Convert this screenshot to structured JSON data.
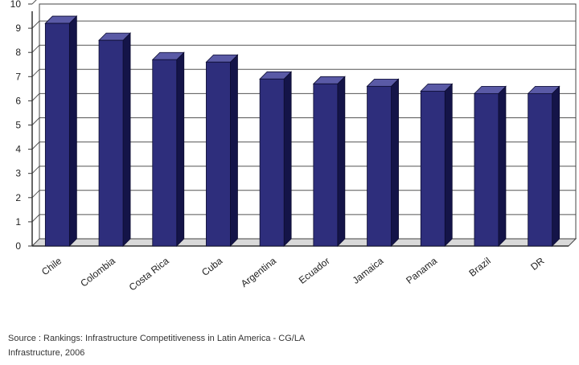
{
  "chart_data": {
    "type": "bar",
    "title": "",
    "xlabel": "",
    "ylabel": "",
    "categories": [
      "Chile",
      "Colombia",
      "Costa Rica",
      "Cuba",
      "Argentina",
      "Ecuador",
      "Jamaica",
      "Panama",
      "Brazil",
      "DR"
    ],
    "values": [
      9.2,
      8.5,
      7.7,
      7.6,
      6.9,
      6.7,
      6.6,
      6.4,
      6.3,
      6.3
    ],
    "ylim": [
      0,
      10
    ],
    "yticks": [
      "0",
      "1",
      "2",
      "3",
      "4",
      "5",
      "6",
      "7",
      "8",
      "9",
      "10"
    ],
    "grid": true,
    "legend": "none",
    "bar_color": "#2e2e7c",
    "bar_side_color": "#141448",
    "bar_top_color": "#5a5aa6"
  },
  "source": {
    "line1": "Source   : Rankings:  Infrastructure Competitiveness in Latin America - CG/LA",
    "line2": "Infrastructure, 2006"
  }
}
